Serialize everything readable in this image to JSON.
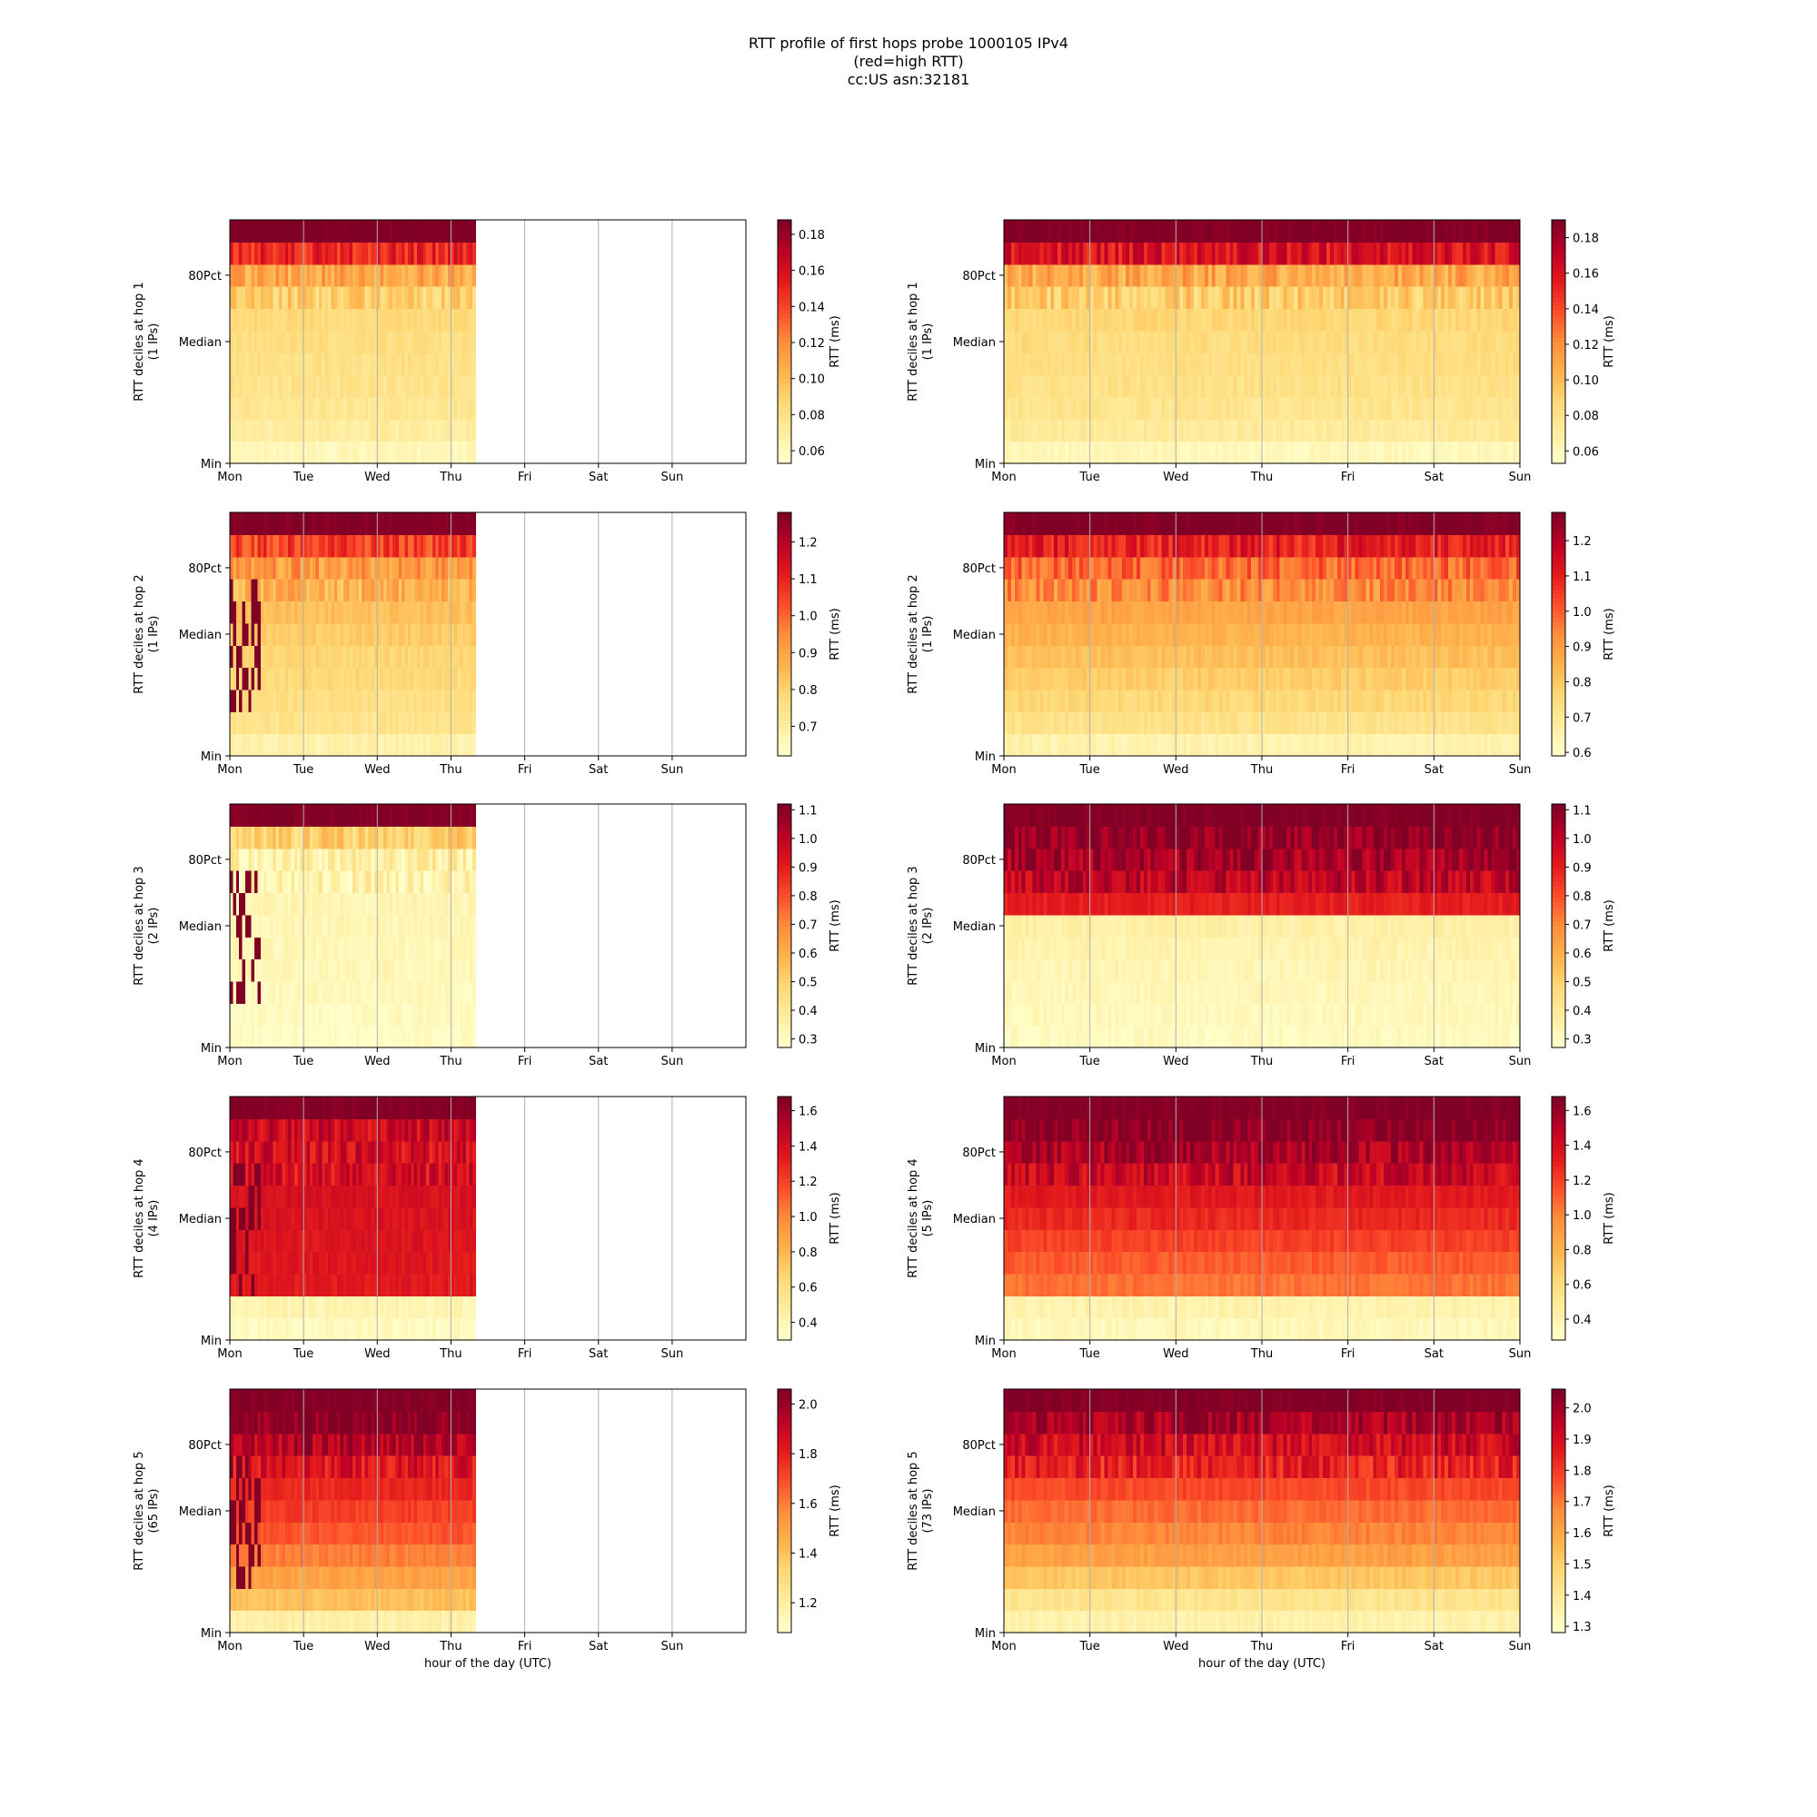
{
  "title_lines": [
    "RTT profile of first hops probe 1000105 IPv4",
    "(red=high RTT)",
    "cc:US asn:32181"
  ],
  "colormap": {
    "name": "YlOrRd",
    "stops": [
      "#ffffcc",
      "#ffeda0",
      "#fed976",
      "#feb24c",
      "#fd8d3c",
      "#fc4e2a",
      "#e31a1c",
      "#bd0026",
      "#800026"
    ]
  },
  "axis_text": {
    "y_ticks": [
      "Min",
      "Median",
      "80Pct"
    ],
    "x_ticks_left": [
      "Mon",
      "Tue",
      "Wed",
      "Thu",
      "Fri",
      "Sat",
      "Sun"
    ],
    "x_ticks_right": [
      "Mon",
      "Tue",
      "Wed",
      "Thu",
      "Fri",
      "Sat",
      "Sun"
    ],
    "xlabel": "hour of the day (UTC)",
    "colorbar_label": "RTT (ms)"
  },
  "chart_data": [
    {
      "type": "heatmap",
      "panel": "left",
      "hop": 1,
      "ylabel_line1": "RTT deciles at hop 1",
      "ylabel_line2": "(1 IPs)",
      "x_start": 0,
      "x_end": 3.33,
      "x_range": [
        0,
        7
      ],
      "vmin": 0.053,
      "vmax": 0.188,
      "colorbar_ticks": [
        "0.06",
        "0.08",
        "0.10",
        "0.12",
        "0.14",
        "0.16",
        "0.18"
      ],
      "decile_levels": [
        0.06,
        0.07,
        0.075,
        0.078,
        0.08,
        0.082,
        0.085,
        0.09,
        0.11,
        0.15,
        0.19
      ]
    },
    {
      "type": "heatmap",
      "panel": "right",
      "hop": 1,
      "ylabel_line1": "RTT deciles at hop 1",
      "ylabel_line2": "(1 IPs)",
      "x_start": 0,
      "x_end": 6,
      "x_range": [
        0,
        6
      ],
      "vmin": 0.053,
      "vmax": 0.19,
      "colorbar_ticks": [
        "0.06",
        "0.08",
        "0.10",
        "0.12",
        "0.14",
        "0.16",
        "0.18"
      ],
      "decile_levels": [
        0.06,
        0.072,
        0.077,
        0.08,
        0.082,
        0.084,
        0.087,
        0.092,
        0.11,
        0.16,
        0.19
      ]
    },
    {
      "type": "heatmap",
      "panel": "left",
      "hop": 2,
      "ylabel_line1": "RTT deciles at hop 2",
      "ylabel_line2": "(1 IPs)",
      "x_start": 0,
      "x_end": 3.33,
      "x_range": [
        0,
        7
      ],
      "vmin": 0.62,
      "vmax": 1.28,
      "colorbar_ticks": [
        "0.7",
        "0.8",
        "0.9",
        "1.0",
        "1.1",
        "1.2"
      ],
      "decile_levels": [
        0.68,
        0.74,
        0.76,
        0.78,
        0.79,
        0.81,
        0.84,
        0.87,
        0.92,
        1.05,
        1.28
      ]
    },
    {
      "type": "heatmap",
      "panel": "right",
      "hop": 2,
      "ylabel_line1": "RTT deciles at hop 2",
      "ylabel_line2": "(1 IPs)",
      "x_start": 0,
      "x_end": 6,
      "x_range": [
        0,
        6
      ],
      "vmin": 0.59,
      "vmax": 1.28,
      "colorbar_ticks": [
        "0.6",
        "0.7",
        "0.8",
        "0.9",
        "1.0",
        "1.1",
        "1.2"
      ],
      "decile_levels": [
        0.65,
        0.72,
        0.76,
        0.79,
        0.82,
        0.85,
        0.88,
        0.93,
        0.99,
        1.1,
        1.28
      ]
    },
    {
      "type": "heatmap",
      "panel": "left",
      "hop": 3,
      "ylabel_line1": "RTT deciles at hop 3",
      "ylabel_line2": "(2 IPs)",
      "x_start": 0,
      "x_end": 3.33,
      "x_range": [
        0,
        7
      ],
      "vmin": 0.27,
      "vmax": 1.12,
      "colorbar_ticks": [
        "0.3",
        "0.4",
        "0.5",
        "0.6",
        "0.7",
        "0.8",
        "0.9",
        "1.0",
        "1.1"
      ],
      "decile_levels": [
        0.29,
        0.3,
        0.31,
        0.315,
        0.32,
        0.325,
        0.33,
        0.34,
        0.36,
        0.5,
        1.12
      ]
    },
    {
      "type": "heatmap",
      "panel": "right",
      "hop": 3,
      "ylabel_line1": "RTT deciles at hop 3",
      "ylabel_line2": "(2 IPs)",
      "x_start": 0,
      "x_end": 6,
      "x_range": [
        0,
        6
      ],
      "vmin": 0.27,
      "vmax": 1.12,
      "colorbar_ticks": [
        "0.3",
        "0.4",
        "0.5",
        "0.6",
        "0.7",
        "0.8",
        "0.9",
        "1.0",
        "1.1"
      ],
      "decile_levels": [
        0.3,
        0.31,
        0.32,
        0.33,
        0.34,
        0.36,
        0.9,
        1.0,
        1.05,
        1.1,
        1.12
      ]
    },
    {
      "type": "heatmap",
      "panel": "left",
      "hop": 4,
      "ylabel_line1": "RTT deciles at hop 4",
      "ylabel_line2": "(4 IPs)",
      "x_start": 0,
      "x_end": 3.33,
      "x_range": [
        0,
        7
      ],
      "vmin": 0.3,
      "vmax": 1.68,
      "colorbar_ticks": [
        "0.4",
        "0.6",
        "0.8",
        "1.0",
        "1.2",
        "1.4",
        "1.6"
      ],
      "decile_levels": [
        0.35,
        0.4,
        1.35,
        1.36,
        1.37,
        1.38,
        1.39,
        1.4,
        1.41,
        1.45,
        1.68
      ]
    },
    {
      "type": "heatmap",
      "panel": "right",
      "hop": 4,
      "ylabel_line1": "RTT deciles at hop 4",
      "ylabel_line2": "(5 IPs)",
      "x_start": 0,
      "x_end": 6,
      "x_range": [
        0,
        6
      ],
      "vmin": 0.28,
      "vmax": 1.68,
      "colorbar_ticks": [
        "0.4",
        "0.6",
        "0.8",
        "1.0",
        "1.2",
        "1.4",
        "1.6"
      ],
      "decile_levels": [
        0.35,
        0.4,
        1.05,
        1.12,
        1.2,
        1.28,
        1.34,
        1.45,
        1.55,
        1.68,
        1.68
      ]
    },
    {
      "type": "heatmap",
      "panel": "left",
      "hop": 5,
      "ylabel_line1": "RTT deciles at hop 5",
      "ylabel_line2": "(65 IPs)",
      "x_start": 0,
      "x_end": 3.33,
      "x_range": [
        0,
        7
      ],
      "vmin": 1.08,
      "vmax": 2.06,
      "colorbar_ticks": [
        "1.2",
        "1.4",
        "1.6",
        "1.8",
        "2.0"
      ],
      "decile_levels": [
        1.18,
        1.4,
        1.5,
        1.6,
        1.68,
        1.73,
        1.78,
        1.85,
        1.95,
        2.05,
        2.06
      ]
    },
    {
      "type": "heatmap",
      "panel": "right",
      "hop": 5,
      "ylabel_line1": "RTT deciles at hop 5",
      "ylabel_line2": "(73 IPs)",
      "x_start": 0,
      "x_end": 6,
      "x_range": [
        0,
        6
      ],
      "vmin": 1.28,
      "vmax": 2.06,
      "colorbar_ticks": [
        "1.3",
        "1.4",
        "1.5",
        "1.6",
        "1.7",
        "1.8",
        "1.9",
        "2.0"
      ],
      "decile_levels": [
        1.35,
        1.42,
        1.52,
        1.62,
        1.68,
        1.72,
        1.78,
        1.85,
        1.92,
        2.0,
        2.06
      ]
    }
  ]
}
